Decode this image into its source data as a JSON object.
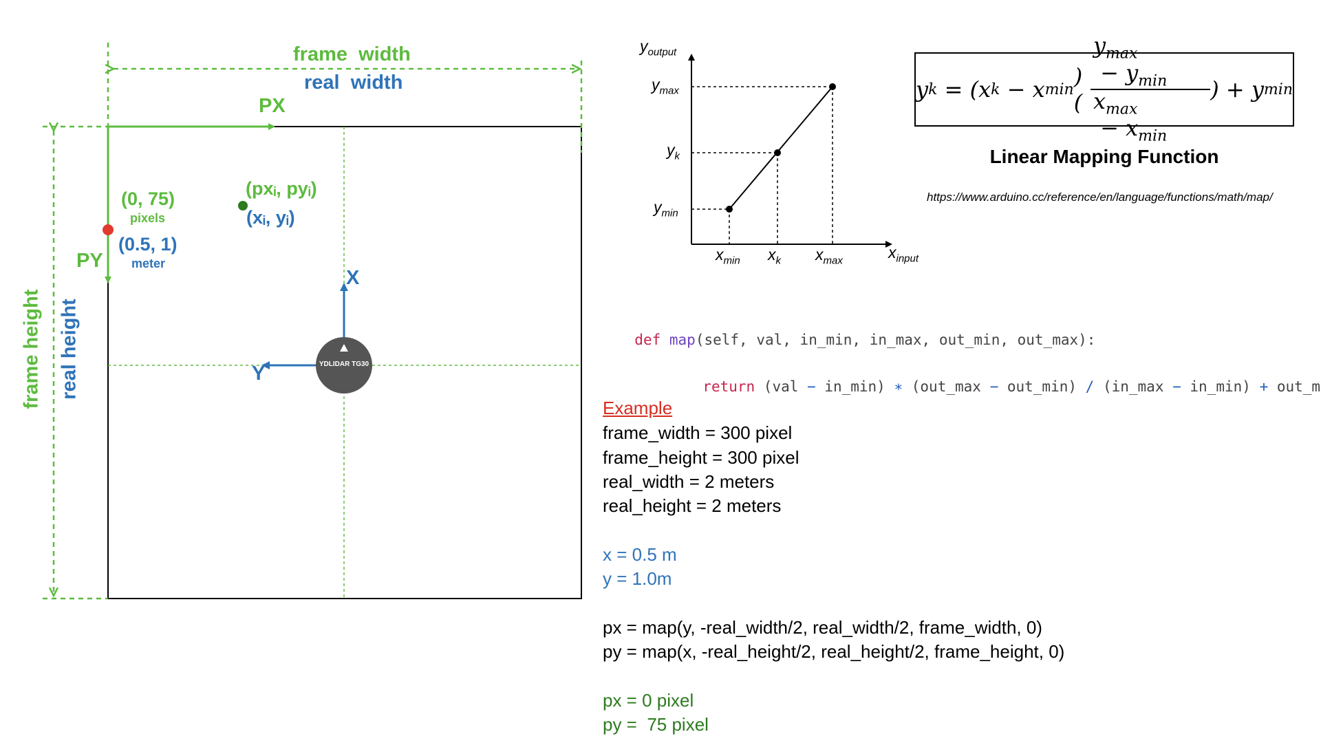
{
  "colors": {
    "green": "#5dbb3f",
    "blue": "#2f73b8",
    "red": "#e03a2f",
    "dark_green": "#2d7a1f",
    "sensor": "#555555",
    "example_red": "#d62d20",
    "black": "#000000"
  },
  "frame_diagram": {
    "frame_width_label": "frame  width",
    "real_width_label": "real  width",
    "frame_height_label": "frame height",
    "real_height_label": "real height",
    "px_label": "PX",
    "py_label": "PY",
    "point_pixels": "(0, 75)",
    "pixels_unit": "pixels",
    "point_meters": "(0.5, 1)",
    "meter_unit": "meter",
    "generic_pixel_point": "(pxᵢ, pyᵢ)",
    "generic_real_point": "(xᵢ, yᵢ)",
    "x_axis": "X",
    "y_axis": "Y",
    "sensor_label": "YDLIDAR TG30"
  },
  "mapping_graph": {
    "y_axis": "y",
    "y_axis_sub": "output",
    "x_axis": "x",
    "x_axis_sub": "input",
    "y_max": "y",
    "y_max_sub": "max",
    "y_k": "y",
    "y_k_sub": "k",
    "y_min": "y",
    "y_min_sub": "min",
    "x_min": "x",
    "x_min_sub": "min",
    "x_k": "x",
    "x_k_sub": "k",
    "x_max": "x",
    "x_max_sub": "max"
  },
  "formula": {
    "lhs": "y",
    "lhs_sub": "k",
    "eq": " = (x",
    "xk_sub": "k",
    "minus": " − x",
    "xmin_sub": "min",
    "paren": ")(",
    "num_a": "y",
    "num_a_sub": "max",
    "num_minus": " − y",
    "num_b_sub": "min",
    "den_a": "x",
    "den_a_sub": "max",
    "den_minus": " − x",
    "den_b_sub": "min",
    "tail": ") + y",
    "tail_sub": "min"
  },
  "title": "Linear Mapping Function",
  "url": "https://www.arduino.cc/reference/en/language/functions/math/map/",
  "code": {
    "def_kw": "def",
    "fn_name": "map",
    "signature": "(self, val, in_min, in_max, out_min, out_max):",
    "return_kw": "return",
    "r1": " (val ",
    "minus1": "−",
    "r2": " in_min) ",
    "mul": "∗",
    "r3": " (out_max ",
    "minus2": "−",
    "r4": " out_min) ",
    "div": "/",
    "r5": " (in_max ",
    "minus3": "−",
    "r6": " in_min) ",
    "plus": "+",
    "r7": " out_min"
  },
  "example": {
    "heading": "Example",
    "lines": [
      "frame_width = 300 pixel",
      "frame_height = 300 pixel",
      "real_width = 2 meters",
      "real_height = 2 meters"
    ],
    "real_values": [
      "x = 0.5 m",
      "y = 1.0m"
    ],
    "map_calls": [
      "px = map(y, -real_width/2, real_width/2, frame_width, 0)",
      "py = map(x, -real_height/2, real_height/2, frame_height, 0)"
    ],
    "results": [
      "px = 0 pixel",
      "py =  75 pixel"
    ]
  }
}
